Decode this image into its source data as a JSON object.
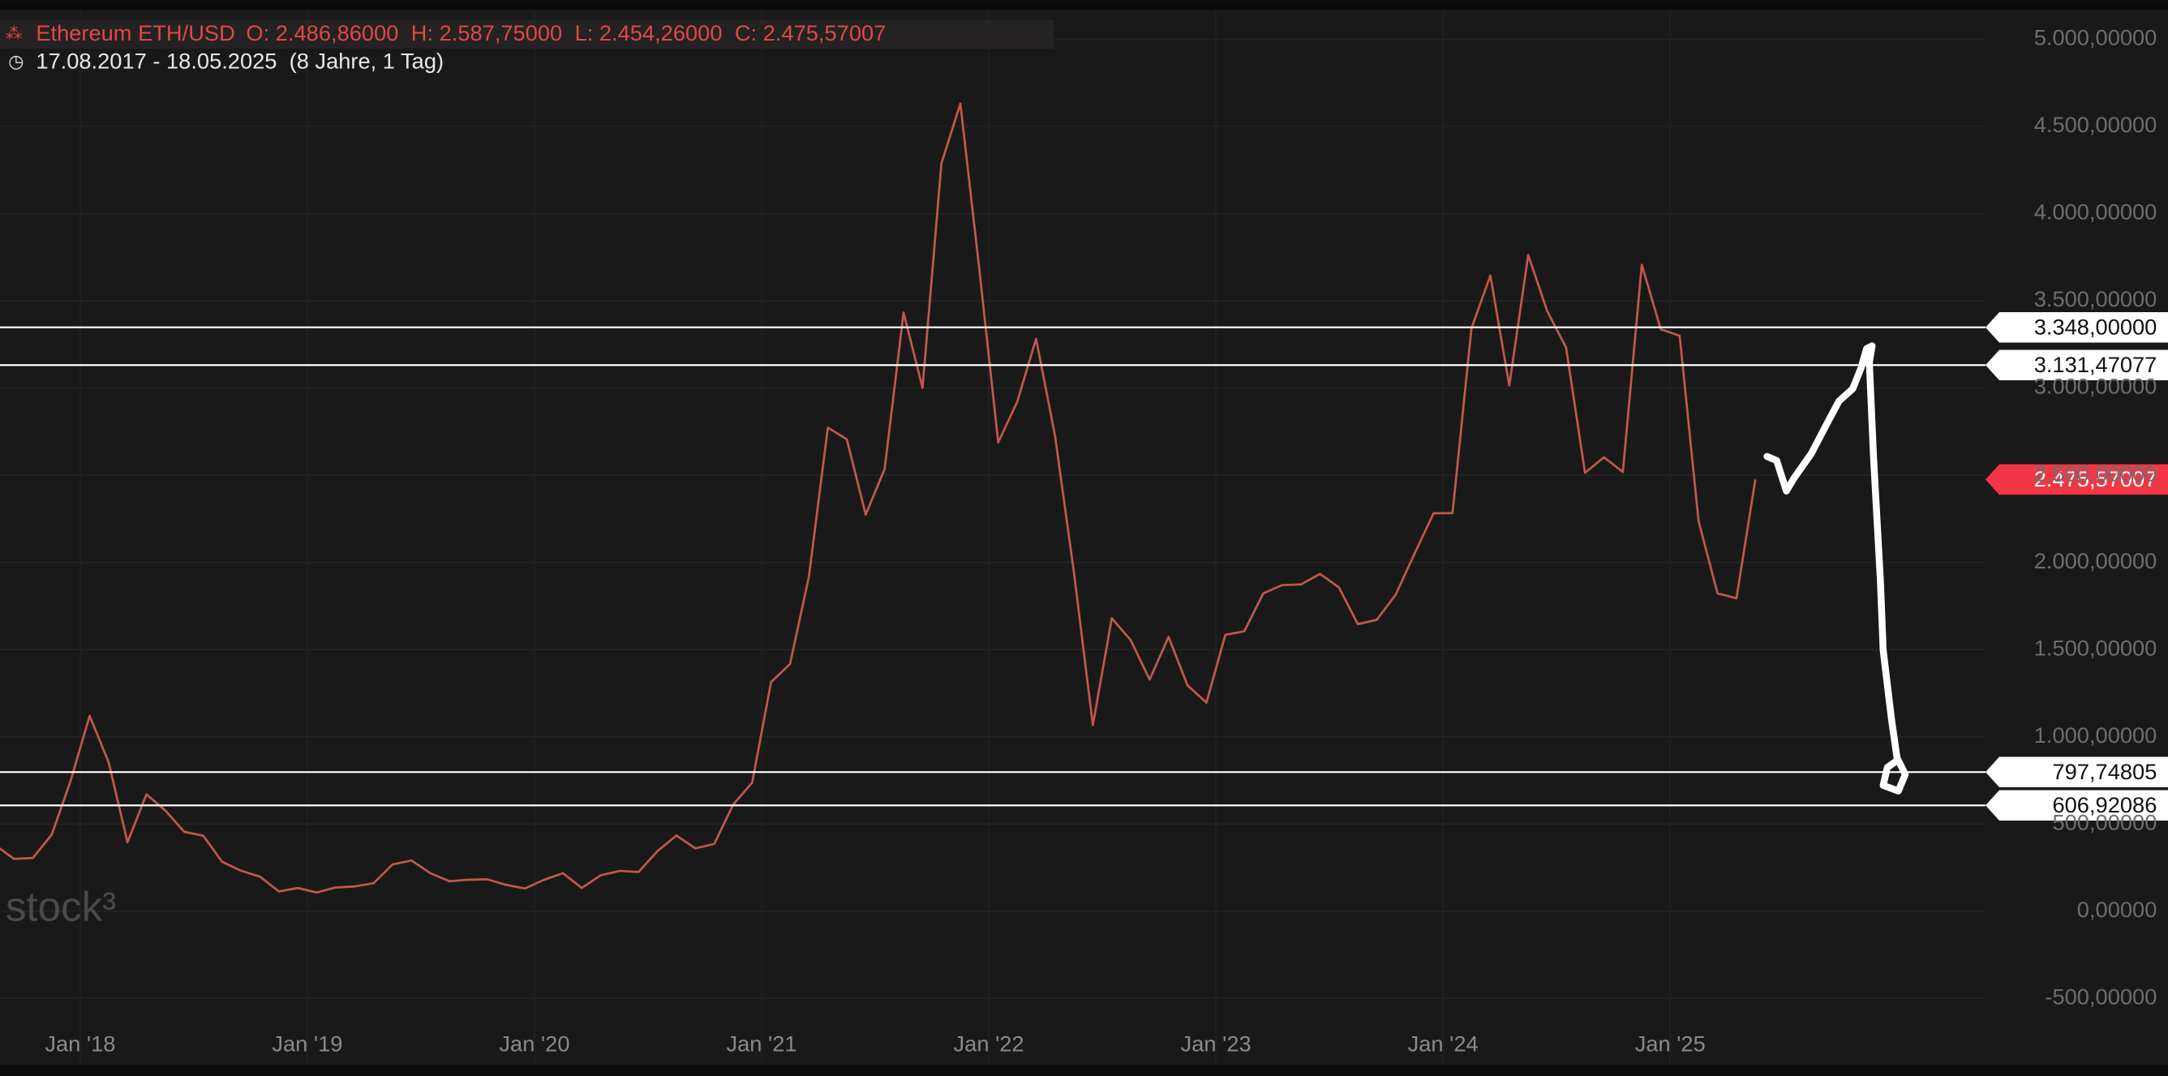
{
  "chart_data": {
    "type": "line",
    "title": "Ethereum ETH/USD",
    "ohlc": [
      "O: 2.486,86000",
      "H: 2.587,75000",
      "L: 2.454,26000",
      "C: 2.475,57007"
    ],
    "subtitle": "17.08.2017 - 18.05.2025  (8 Jahre, 1 Tag)",
    "watermark": "stock³",
    "color": "#c0584c",
    "categories": [
      null,
      null,
      null,
      null,
      null,
      "Jan '18",
      null,
      null,
      null,
      null,
      null,
      null,
      null,
      null,
      null,
      null,
      null,
      "Jan '19",
      null,
      null,
      null,
      null,
      null,
      null,
      null,
      null,
      null,
      null,
      null,
      "Jan '20",
      null,
      null,
      null,
      null,
      null,
      null,
      null,
      null,
      null,
      null,
      null,
      "Jan '21",
      null,
      null,
      null,
      null,
      null,
      null,
      null,
      null,
      null,
      null,
      null,
      "Jan '22",
      null,
      null,
      null,
      null,
      null,
      null,
      null,
      null,
      null,
      null,
      null,
      "Jan '23",
      null,
      null,
      null,
      null,
      null,
      null,
      null,
      null,
      null,
      null,
      null,
      "Jan '24",
      null,
      null,
      null,
      null,
      null,
      null,
      null,
      null,
      null,
      null,
      null,
      "Jan '25",
      null,
      null,
      null,
      null
    ],
    "values": [
      380,
      300,
      305,
      440,
      750,
      1120,
      855,
      395,
      670,
      577,
      455,
      433,
      283,
      232,
      198,
      113,
      133,
      107,
      136,
      142,
      160,
      268,
      291,
      218,
      172,
      180,
      183,
      151,
      130,
      180,
      218,
      133,
      206,
      231,
      225,
      345,
      434,
      360,
      386,
      612,
      737,
      1314,
      1417,
      1919,
      2773,
      2706,
      2274,
      2536,
      3433,
      3001,
      4288,
      4631,
      3683,
      2688,
      2920,
      3282,
      2727,
      1942,
      1067,
      1680,
      1554,
      1328,
      1573,
      1295,
      1196,
      1585,
      1605,
      1822,
      1870,
      1874,
      1934,
      1857,
      1646,
      1671,
      1815,
      2052,
      2282,
      2283,
      3341,
      3645,
      3014,
      3763,
      3442,
      3232,
      2514,
      2603,
      2519,
      3707,
      3337,
      3300,
      2237,
      1823,
      1794,
      2476
    ],
    "ylim": [
      -880,
      5160
    ],
    "yticks": [
      {
        "value": -500,
        "label": "-500,00000"
      },
      {
        "value": 0,
        "label": "0,00000"
      },
      {
        "value": 500,
        "label": "500,00000"
      },
      {
        "value": 1000,
        "label": "1.000,00000"
      },
      {
        "value": 1500,
        "label": "1.500,00000"
      },
      {
        "value": 2000,
        "label": "2.000,00000"
      },
      {
        "value": 2500,
        "label": "2.500,00000"
      },
      {
        "value": 3000,
        "label": "3.000,00000"
      },
      {
        "value": 3500,
        "label": "3.500,00000"
      },
      {
        "value": 4000,
        "label": "4.000,00000"
      },
      {
        "value": 4500,
        "label": "4.500,00000"
      },
      {
        "value": 5000,
        "label": "5.000,00000"
      }
    ],
    "grid": true,
    "hlines": [
      {
        "value": 3348,
        "label": "3.348,00000"
      },
      {
        "value": 3131.47077,
        "label": "3.131,47077"
      },
      {
        "value": 797.74805,
        "label": "797,74805"
      },
      {
        "value": 606.92086,
        "label": "606,92086"
      }
    ],
    "last_price": {
      "value": 2475.57007,
      "label": "2.475,57007",
      "color": "#f23645"
    }
  }
}
